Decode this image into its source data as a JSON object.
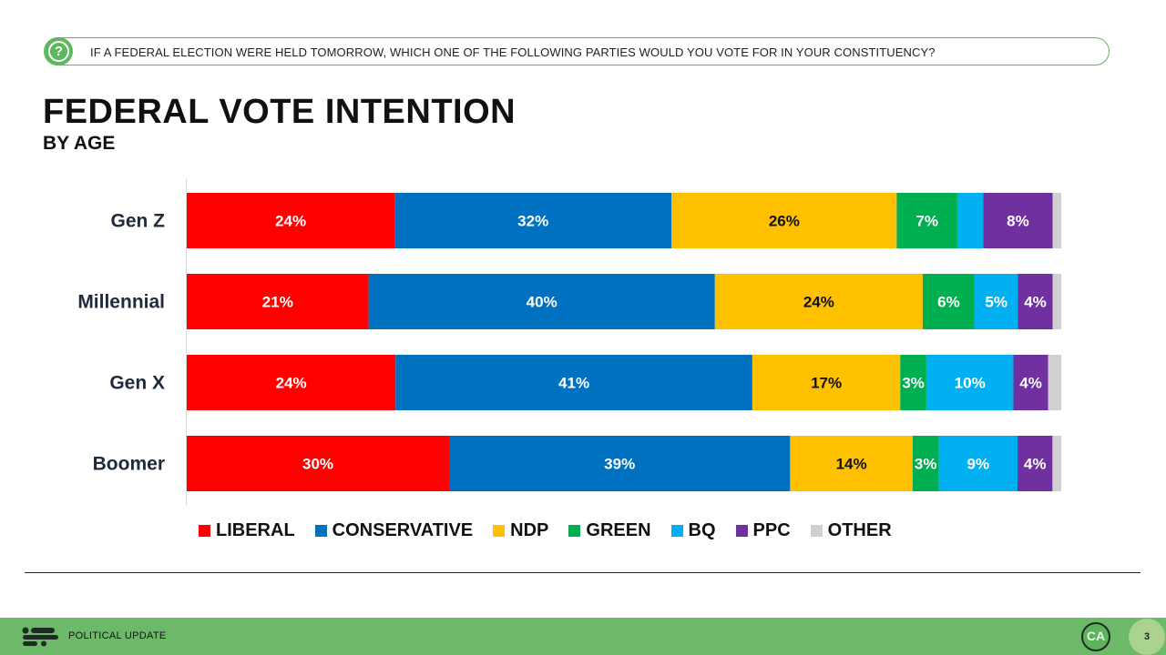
{
  "question": {
    "icon": "question-circle-icon",
    "text": "IF A FEDERAL ELECTION WERE HELD TOMORROW, WHICH ONE OF THE FOLLOWING PARTIES WOULD YOU VOTE FOR IN YOUR CONSTITUENCY?"
  },
  "footer": {
    "label": "POLITICAL UPDATE",
    "brand": "CA",
    "page_number": "3"
  },
  "colors": {
    "accent": "#5cb85c",
    "footer_bg": "#6db96a"
  },
  "chart_data": {
    "type": "bar",
    "orientation": "horizontal",
    "stacked": true,
    "title": "FEDERAL VOTE INTENTION",
    "subtitle": "BY AGE",
    "legend_position": "bottom",
    "categories": [
      "Gen Z",
      "Millennial",
      "Gen X",
      "Boomer"
    ],
    "series": [
      {
        "name": "LIBERAL",
        "color": "#ff0000",
        "values": [
          24,
          21,
          24,
          30
        ],
        "labels": [
          "24%",
          "21%",
          "24%",
          "30%"
        ]
      },
      {
        "name": "CONSERVATIVE",
        "color": "#0070c0",
        "values": [
          32,
          40,
          41,
          39
        ],
        "labels": [
          "32%",
          "40%",
          "41%",
          "39%"
        ]
      },
      {
        "name": "NDP",
        "color": "#ffc000",
        "values": [
          26,
          24,
          17,
          14
        ],
        "labels": [
          "26%",
          "24%",
          "17%",
          "14%"
        ]
      },
      {
        "name": "GREEN",
        "color": "#00b050",
        "values": [
          7,
          6,
          3,
          3
        ],
        "labels": [
          "7%",
          "6%",
          "3%",
          "3%"
        ]
      },
      {
        "name": "BQ",
        "color": "#00b0f0",
        "values": [
          3,
          5,
          10,
          9
        ],
        "labels": [
          "",
          "5%",
          "10%",
          "9%"
        ]
      },
      {
        "name": "PPC",
        "color": "#7030a0",
        "values": [
          8,
          4,
          4,
          4
        ],
        "labels": [
          "8%",
          "4%",
          "4%",
          "4%"
        ]
      },
      {
        "name": "OTHER",
        "color": "#d0d0d0",
        "values": [
          1,
          1,
          1.5,
          1
        ],
        "labels": [
          "",
          "",
          "",
          ""
        ]
      }
    ]
  }
}
